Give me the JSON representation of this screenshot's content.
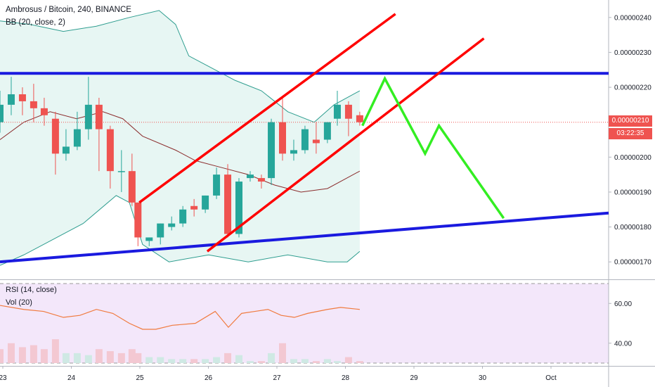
{
  "header": {
    "title": "Ambrosus / Bitcoin, 240, BINANCE",
    "bb_label": "BB (20, close, 2)",
    "rsi_label": "RSI (14, close)",
    "vol_label": "Vol (20)"
  },
  "price_tag": {
    "price": "0.00000210",
    "countdown": "03:22:35"
  },
  "colors": {
    "up": "#26a69a",
    "down": "#ef5350",
    "blue_line": "#1a1adf",
    "red_line": "#ff0000",
    "green_line": "#33ee22",
    "rsi": "#f07b3f",
    "bb_mid": "#8b2d2d",
    "bb_band": "#2e9d8f"
  },
  "chart_data": {
    "type": "candlestick",
    "price_axis": {
      "ylim": [
        1.65e-06,
        2.45e-06
      ],
      "ticks": [
        "0.00000240",
        "0.00000230",
        "0.00000220",
        "0.00000210",
        "0.00000200",
        "0.00000190",
        "0.00000180",
        "0.00000170"
      ]
    },
    "time_axis": {
      "xlim": [
        0.04,
        9.26
      ],
      "ticks": [
        "23",
        "24",
        "25",
        "26",
        "27",
        "28",
        "29",
        "30",
        "Oct"
      ]
    },
    "candles": [
      {
        "t": 0.04,
        "o": 2.1,
        "h": 2.19,
        "c": 2.15,
        "l": 2.07
      },
      {
        "t": 0.21,
        "o": 2.15,
        "h": 2.23,
        "c": 2.18,
        "l": 2.12
      },
      {
        "t": 0.38,
        "o": 2.18,
        "h": 2.2,
        "c": 2.16,
        "l": 2.12
      },
      {
        "t": 0.55,
        "o": 2.16,
        "h": 2.21,
        "c": 2.14,
        "l": 2.1
      },
      {
        "t": 0.71,
        "o": 2.14,
        "h": 2.17,
        "c": 2.12,
        "l": 2.09
      },
      {
        "t": 0.88,
        "o": 2.11,
        "h": 2.13,
        "c": 2.01,
        "l": 1.95
      },
      {
        "t": 1.04,
        "o": 2.01,
        "h": 2.08,
        "c": 2.03,
        "l": 1.99
      },
      {
        "t": 1.21,
        "o": 2.03,
        "h": 2.13,
        "c": 2.08,
        "l": 2.02
      },
      {
        "t": 1.38,
        "o": 2.08,
        "h": 2.23,
        "c": 2.15,
        "l": 2.05
      },
      {
        "t": 1.54,
        "o": 2.15,
        "h": 2.17,
        "c": 2.08,
        "l": 1.96
      },
      {
        "t": 1.71,
        "o": 2.08,
        "h": 2.09,
        "c": 1.96,
        "l": 1.91
      },
      {
        "t": 1.88,
        "o": 1.96,
        "h": 2.02,
        "c": 1.96,
        "l": 1.9
      },
      {
        "t": 2.04,
        "o": 1.96,
        "h": 2.01,
        "c": 1.87,
        "l": 1.86
      },
      {
        "t": 2.13,
        "o": 1.87,
        "h": 1.87,
        "c": 1.77,
        "l": 1.745
      },
      {
        "t": 2.3,
        "o": 1.76,
        "h": 1.77,
        "c": 1.77,
        "l": 1.745
      },
      {
        "t": 2.47,
        "o": 1.77,
        "h": 1.81,
        "c": 1.81,
        "l": 1.75
      },
      {
        "t": 2.64,
        "o": 1.8,
        "h": 1.83,
        "c": 1.81,
        "l": 1.79
      },
      {
        "t": 2.81,
        "o": 1.81,
        "h": 1.86,
        "c": 1.85,
        "l": 1.8
      },
      {
        "t": 2.98,
        "o": 1.86,
        "h": 1.88,
        "c": 1.85,
        "l": 1.83
      },
      {
        "t": 3.15,
        "o": 1.85,
        "h": 1.89,
        "c": 1.89,
        "l": 1.84
      },
      {
        "t": 3.32,
        "o": 1.89,
        "h": 1.97,
        "c": 1.95,
        "l": 1.88
      },
      {
        "t": 3.49,
        "o": 1.95,
        "h": 1.98,
        "c": 1.78,
        "l": 1.77
      },
      {
        "t": 3.66,
        "o": 1.78,
        "h": 1.94,
        "c": 1.93,
        "l": 1.77
      },
      {
        "t": 3.83,
        "o": 1.94,
        "h": 1.96,
        "c": 1.95,
        "l": 1.93
      },
      {
        "t": 4.0,
        "o": 1.94,
        "h": 1.95,
        "c": 1.93,
        "l": 1.91
      },
      {
        "t": 4.15,
        "o": 1.94,
        "h": 2.11,
        "c": 2.1,
        "l": 1.92
      },
      {
        "t": 4.32,
        "o": 2.1,
        "h": 2.17,
        "c": 2.01,
        "l": 1.99
      },
      {
        "t": 4.49,
        "o": 2.01,
        "h": 2.05,
        "c": 2.02,
        "l": 1.99
      },
      {
        "t": 4.66,
        "o": 2.02,
        "h": 2.09,
        "c": 2.08,
        "l": 2.01
      },
      {
        "t": 4.83,
        "o": 2.05,
        "h": 2.1,
        "c": 2.04,
        "l": 2.01
      },
      {
        "t": 5.0,
        "o": 2.05,
        "h": 2.1,
        "c": 2.1,
        "l": 2.04
      },
      {
        "t": 5.15,
        "o": 2.11,
        "h": 2.19,
        "c": 2.15,
        "l": 2.09
      },
      {
        "t": 5.32,
        "o": 2.15,
        "h": 2.16,
        "c": 2.11,
        "l": 2.06
      },
      {
        "t": 5.49,
        "o": 2.12,
        "h": 2.13,
        "c": 2.1,
        "l": 2.09
      }
    ],
    "bollinger_bands": {
      "upper": [
        [
          0.04,
          2.39
        ],
        [
          0.5,
          2.38
        ],
        [
          1.0,
          2.36
        ],
        [
          1.5,
          2.375
        ],
        [
          2.0,
          2.4
        ],
        [
          2.45,
          2.42
        ],
        [
          2.7,
          2.38
        ],
        [
          2.9,
          2.29
        ],
        [
          3.2,
          2.26
        ],
        [
          3.6,
          2.22
        ],
        [
          4.0,
          2.19
        ],
        [
          4.4,
          2.13
        ],
        [
          4.8,
          2.1
        ],
        [
          5.1,
          2.15
        ],
        [
          5.49,
          2.19
        ]
      ],
      "middle": [
        [
          0.04,
          2.05
        ],
        [
          0.4,
          2.1
        ],
        [
          0.8,
          2.13
        ],
        [
          1.2,
          2.11
        ],
        [
          1.6,
          2.13
        ],
        [
          1.9,
          2.11
        ],
        [
          2.2,
          2.06
        ],
        [
          2.7,
          2.02
        ],
        [
          3.0,
          1.99
        ],
        [
          3.4,
          1.97
        ],
        [
          3.8,
          1.95
        ],
        [
          4.2,
          1.92
        ],
        [
          4.6,
          1.9
        ],
        [
          5.0,
          1.91
        ],
        [
          5.49,
          1.96
        ]
      ],
      "lower": [
        [
          0.04,
          1.69
        ],
        [
          0.4,
          1.72
        ],
        [
          0.8,
          1.76
        ],
        [
          1.3,
          1.81
        ],
        [
          1.8,
          1.89
        ],
        [
          2.0,
          1.87
        ],
        [
          2.2,
          1.75
        ],
        [
          2.6,
          1.7
        ],
        [
          3.2,
          1.72
        ],
        [
          3.8,
          1.7
        ],
        [
          4.4,
          1.72
        ],
        [
          5.0,
          1.7
        ],
        [
          5.3,
          1.7
        ],
        [
          5.49,
          1.73
        ]
      ]
    },
    "drawings": [
      {
        "kind": "horizontal_line",
        "color": "blue",
        "points": [
          [
            0.04,
            2.24
          ],
          [
            9.26,
            2.24
          ]
        ]
      },
      {
        "kind": "trend_line",
        "color": "blue",
        "points": [
          [
            0.04,
            1.7
          ],
          [
            9.26,
            1.84
          ]
        ]
      },
      {
        "kind": "trend_line",
        "color": "red",
        "points": [
          [
            2.15,
            1.87
          ],
          [
            6.03,
            2.41
          ]
        ]
      },
      {
        "kind": "trend_line",
        "color": "red",
        "points": [
          [
            3.18,
            1.73
          ],
          [
            7.37,
            2.34
          ]
        ]
      },
      {
        "kind": "polyline",
        "color": "green",
        "points": [
          [
            5.53,
            2.09
          ],
          [
            5.87,
            2.225
          ],
          [
            6.48,
            2.01
          ],
          [
            6.69,
            2.09
          ],
          [
            7.67,
            1.825
          ]
        ]
      }
    ],
    "rsi": {
      "label": "RSI (14, close)",
      "ylim": [
        30,
        70
      ],
      "ticks": [
        "60.00",
        "40.00"
      ],
      "values": [
        [
          0.04,
          59
        ],
        [
          0.4,
          57
        ],
        [
          0.7,
          56
        ],
        [
          1.0,
          53
        ],
        [
          1.25,
          54
        ],
        [
          1.5,
          57
        ],
        [
          1.75,
          55
        ],
        [
          2.0,
          50
        ],
        [
          2.2,
          47
        ],
        [
          2.4,
          47
        ],
        [
          2.65,
          49
        ],
        [
          3.0,
          50
        ],
        [
          3.3,
          56
        ],
        [
          3.5,
          48
        ],
        [
          3.7,
          55
        ],
        [
          3.9,
          56
        ],
        [
          4.1,
          57
        ],
        [
          4.3,
          54
        ],
        [
          4.5,
          53
        ],
        [
          4.7,
          55
        ],
        [
          5.0,
          57
        ],
        [
          5.2,
          58
        ],
        [
          5.49,
          57
        ]
      ]
    },
    "volume": {
      "label": "Vol (20)",
      "values": [
        [
          0.04,
          7,
          "down"
        ],
        [
          0.21,
          10,
          "down"
        ],
        [
          0.38,
          8,
          "down"
        ],
        [
          0.55,
          9,
          "down"
        ],
        [
          0.71,
          7,
          "down"
        ],
        [
          0.88,
          12,
          "down"
        ],
        [
          1.04,
          5,
          "up"
        ],
        [
          1.21,
          5,
          "up"
        ],
        [
          1.38,
          4,
          "up"
        ],
        [
          1.54,
          7,
          "down"
        ],
        [
          1.71,
          6,
          "down"
        ],
        [
          1.88,
          5,
          "down"
        ],
        [
          2.04,
          7,
          "down"
        ],
        [
          2.13,
          5,
          "down"
        ],
        [
          2.3,
          3,
          "up"
        ],
        [
          2.47,
          3,
          "up"
        ],
        [
          2.64,
          2,
          "up"
        ],
        [
          2.81,
          2,
          "up"
        ],
        [
          2.98,
          2,
          "down"
        ],
        [
          3.15,
          2,
          "up"
        ],
        [
          3.32,
          3,
          "up"
        ],
        [
          3.49,
          5,
          "down"
        ],
        [
          3.66,
          4,
          "up"
        ],
        [
          3.83,
          1,
          "up"
        ],
        [
          4.0,
          1,
          "down"
        ],
        [
          4.15,
          5,
          "up"
        ],
        [
          4.32,
          10,
          "down"
        ],
        [
          4.49,
          2,
          "up"
        ],
        [
          4.66,
          2,
          "up"
        ],
        [
          4.83,
          1,
          "down"
        ],
        [
          5.0,
          2,
          "up"
        ],
        [
          5.15,
          1,
          "up"
        ],
        [
          5.32,
          3,
          "down"
        ],
        [
          5.49,
          1,
          "down"
        ]
      ]
    }
  }
}
